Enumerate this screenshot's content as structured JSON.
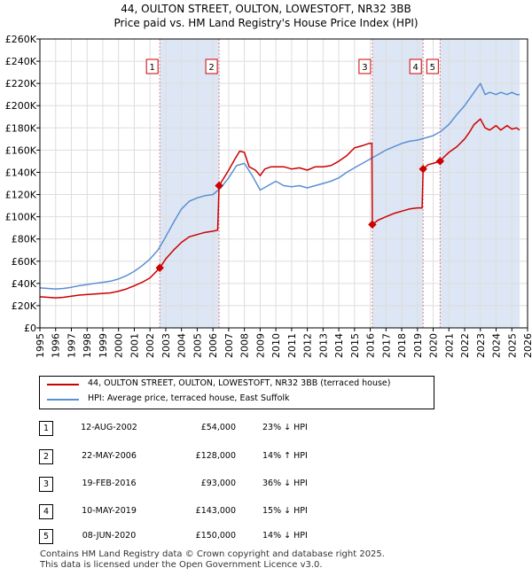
{
  "title_line1": "44, OULTON STREET, OULTON, LOWESTOFT, NR32 3BB",
  "title_line2": "Price paid vs. HM Land Registry's House Price Index (HPI)",
  "colors": {
    "property": "#cc0000",
    "hpi": "#5b8fd4",
    "shade": "#dde6f4",
    "grid": "#dddddd",
    "marker_line": "#e08080"
  },
  "chart_data": {
    "type": "line",
    "title": "Price paid vs. HM Land Registry's House Price Index (HPI)",
    "xlabel": "",
    "ylabel": "",
    "xlim": [
      1995.0,
      2026.0
    ],
    "ylim": [
      0,
      260000
    ],
    "y_ticks": [
      0,
      20000,
      40000,
      60000,
      80000,
      100000,
      120000,
      140000,
      160000,
      180000,
      200000,
      220000,
      240000,
      260000
    ],
    "y_tick_labels": [
      "£0",
      "£20K",
      "£40K",
      "£60K",
      "£80K",
      "£100K",
      "£120K",
      "£140K",
      "£160K",
      "£180K",
      "£200K",
      "£220K",
      "£240K",
      "£260K"
    ],
    "x_ticks": [
      1995,
      1996,
      1997,
      1998,
      1999,
      2000,
      2001,
      2002,
      2003,
      2004,
      2005,
      2006,
      2007,
      2008,
      2009,
      2010,
      2011,
      2012,
      2013,
      2014,
      2015,
      2016,
      2017,
      2018,
      2019,
      2020,
      2021,
      2022,
      2023,
      2024,
      2025,
      2026
    ],
    "x_tick_labels": [
      "1995",
      "1996",
      "1997",
      "1998",
      "1999",
      "2000",
      "2001",
      "2002",
      "2003",
      "2004",
      "2005",
      "2006",
      "2007",
      "2008",
      "2009",
      "2010",
      "2011",
      "2012",
      "2013",
      "2014",
      "2015",
      "2016",
      "2017",
      "2018",
      "2019",
      "2020",
      "2021",
      "2022",
      "2023",
      "2024",
      "2025",
      "2026"
    ],
    "grid": true,
    "legend_position": "below",
    "shaded_ranges": [
      [
        2002.62,
        2006.39
      ],
      [
        2016.13,
        2019.36
      ],
      [
        2020.44,
        2025.5
      ]
    ],
    "series": [
      {
        "name": "44, OULTON STREET, OULTON, LOWESTOFT, NR32 3BB (terraced house)",
        "color": "#cc0000",
        "x": [
          1995.0,
          1995.5,
          1996.0,
          1996.5,
          1997.0,
          1997.5,
          1998.0,
          1998.5,
          1999.0,
          1999.5,
          2000.0,
          2000.5,
          2001.0,
          2001.5,
          2002.0,
          2002.62,
          2003.0,
          2003.5,
          2004.0,
          2004.5,
          2005.0,
          2005.5,
          2006.0,
          2006.3,
          2006.39,
          2006.7,
          2007.0,
          2007.4,
          2007.7,
          2008.0,
          2008.3,
          2008.7,
          2009.0,
          2009.3,
          2009.7,
          2010.0,
          2010.5,
          2011.0,
          2011.5,
          2012.0,
          2012.5,
          2013.0,
          2013.5,
          2014.0,
          2014.5,
          2015.0,
          2015.5,
          2015.9,
          2016.1,
          2016.13,
          2016.5,
          2017.0,
          2017.5,
          2018.0,
          2018.5,
          2019.0,
          2019.3,
          2019.36,
          2019.7,
          2020.0,
          2020.44,
          2020.7,
          2021.0,
          2021.5,
          2022.0,
          2022.3,
          2022.6,
          2023.0,
          2023.3,
          2023.6,
          2024.0,
          2024.3,
          2024.7,
          2025.0,
          2025.3,
          2025.5
        ],
        "values": [
          28000,
          27500,
          27000,
          27500,
          28500,
          29500,
          30000,
          30500,
          31000,
          31500,
          33000,
          35000,
          38000,
          41000,
          45000,
          54000,
          62000,
          70000,
          77000,
          82000,
          84000,
          86000,
          87000,
          88000,
          128000,
          135000,
          142000,
          152000,
          159000,
          158000,
          145000,
          142000,
          137000,
          143000,
          145000,
          145000,
          145000,
          143000,
          144000,
          142000,
          145000,
          145000,
          146000,
          150000,
          155000,
          162000,
          164000,
          166000,
          166000,
          93000,
          97000,
          100000,
          103000,
          105000,
          107000,
          108000,
          108000,
          143000,
          147000,
          148000,
          150000,
          154000,
          158000,
          163000,
          170000,
          176000,
          183000,
          188000,
          180000,
          178000,
          182000,
          178000,
          182000,
          179000,
          180000,
          178000
        ],
        "label": "44, OULTON STREET, OULTON, LOWESTOFT, NR32 3BB (terraced house)"
      },
      {
        "name": "HPI: Average price, terraced house, East Suffolk",
        "color": "#5b8fd4",
        "x": [
          1995.0,
          1995.5,
          1996.0,
          1996.5,
          1997.0,
          1997.5,
          1998.0,
          1998.5,
          1999.0,
          1999.5,
          2000.0,
          2000.5,
          2001.0,
          2001.5,
          2002.0,
          2002.5,
          2003.0,
          2003.5,
          2004.0,
          2004.5,
          2005.0,
          2005.5,
          2006.0,
          2006.5,
          2007.0,
          2007.5,
          2008.0,
          2008.5,
          2009.0,
          2009.5,
          2010.0,
          2010.5,
          2011.0,
          2011.5,
          2012.0,
          2012.5,
          2013.0,
          2013.5,
          2014.0,
          2014.5,
          2015.0,
          2015.5,
          2016.0,
          2016.5,
          2017.0,
          2017.5,
          2018.0,
          2018.5,
          2019.0,
          2019.5,
          2020.0,
          2020.5,
          2021.0,
          2021.5,
          2022.0,
          2022.5,
          2023.0,
          2023.3,
          2023.6,
          2024.0,
          2024.3,
          2024.7,
          2025.0,
          2025.3,
          2025.5
        ],
        "values": [
          36000,
          35500,
          35000,
          35500,
          36500,
          38000,
          39000,
          40000,
          41000,
          42000,
          44000,
          47000,
          51000,
          56000,
          62000,
          70000,
          82000,
          95000,
          107000,
          114000,
          117000,
          119000,
          120000,
          126000,
          135000,
          146000,
          148000,
          137000,
          124000,
          128000,
          132000,
          128000,
          127000,
          128000,
          126000,
          128000,
          130000,
          132000,
          135000,
          140000,
          144000,
          148000,
          152000,
          156000,
          160000,
          163000,
          166000,
          168000,
          169000,
          171000,
          173000,
          177000,
          183000,
          192000,
          200000,
          210000,
          220000,
          210000,
          212000,
          210000,
          212000,
          210000,
          212000,
          210000,
          210000
        ],
        "label": "HPI: Average price, terraced house, East Suffolk"
      }
    ],
    "sales": [
      {
        "id": "1",
        "x": 2002.62,
        "price": 54000
      },
      {
        "id": "2",
        "x": 2006.39,
        "price": 128000
      },
      {
        "id": "3",
        "x": 2016.13,
        "price": 93000
      },
      {
        "id": "4",
        "x": 2019.36,
        "price": 143000
      },
      {
        "id": "5",
        "x": 2020.44,
        "price": 150000
      }
    ]
  },
  "legend": {
    "property_label": "44, OULTON STREET, OULTON, LOWESTOFT, NR32 3BB (terraced house)",
    "hpi_label": "HPI: Average price, terraced house, East Suffolk"
  },
  "table": [
    {
      "num": "1",
      "date": "12-AUG-2002",
      "price": "£54,000",
      "hpi": "23% ↓ HPI"
    },
    {
      "num": "2",
      "date": "22-MAY-2006",
      "price": "£128,000",
      "hpi": "14% ↑ HPI"
    },
    {
      "num": "3",
      "date": "19-FEB-2016",
      "price": "£93,000",
      "hpi": "36% ↓ HPI"
    },
    {
      "num": "4",
      "date": "10-MAY-2019",
      "price": "£143,000",
      "hpi": "15% ↓ HPI"
    },
    {
      "num": "5",
      "date": "08-JUN-2020",
      "price": "£150,000",
      "hpi": "14% ↓ HPI"
    }
  ],
  "footer_line1": "Contains HM Land Registry data © Crown copyright and database right 2025.",
  "footer_line2": "This data is licensed under the Open Government Licence v3.0."
}
